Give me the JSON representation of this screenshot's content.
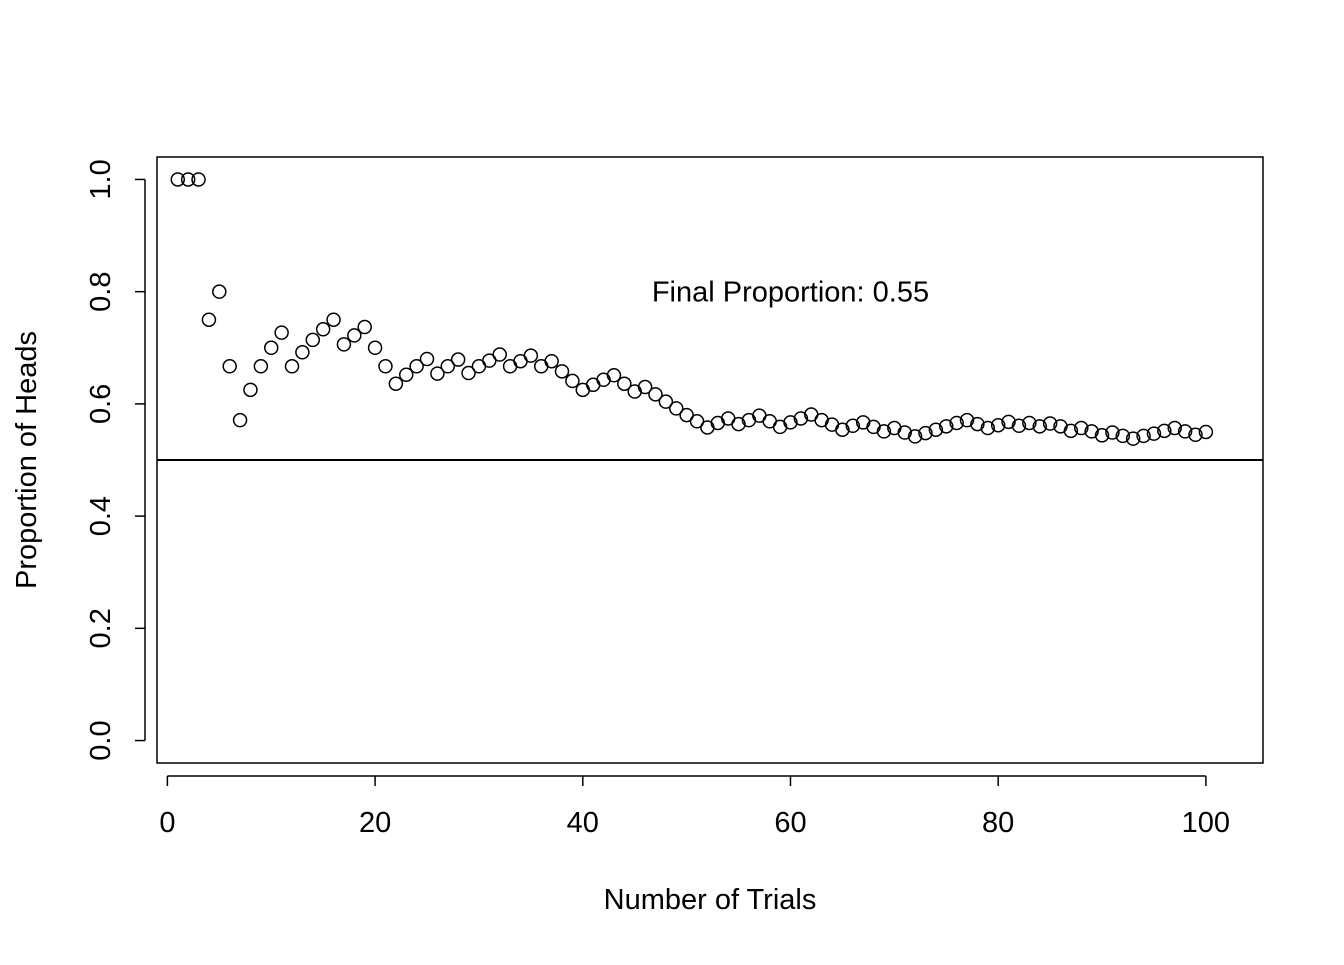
{
  "chart_data": {
    "type": "scatter",
    "title": "",
    "xlabel": "Number of Trials",
    "ylabel": "Proportion of Heads",
    "xlim": [
      -1,
      105.5
    ],
    "ylim": [
      -0.04,
      1.04
    ],
    "xticks": [
      0,
      20,
      40,
      60,
      80,
      100
    ],
    "xtick_labels": [
      "0",
      "20",
      "40",
      "60",
      "80",
      "100"
    ],
    "yticks": [
      0.0,
      0.2,
      0.4,
      0.6,
      0.8,
      1.0
    ],
    "ytick_labels": [
      "0.0",
      "0.2",
      "0.4",
      "0.6",
      "0.8",
      "1.0"
    ],
    "grid": false,
    "legend": "none",
    "reference_line": {
      "orientation": "horizontal",
      "y": 0.5
    },
    "annotation": {
      "text": "Final Proportion:  0.55",
      "x": 60,
      "y": 0.8
    },
    "marker": "open-circle",
    "color": "#000000",
    "series": [
      {
        "x": [
          1,
          2,
          3,
          4,
          5,
          6,
          7,
          8,
          9,
          10,
          11,
          12,
          13,
          14,
          15,
          16,
          17,
          18,
          19,
          20,
          21,
          22,
          23,
          24,
          25,
          26,
          27,
          28,
          29,
          30,
          31,
          32,
          33,
          34,
          35,
          36,
          37,
          38,
          39,
          40,
          41,
          42,
          43,
          44,
          45,
          46,
          47,
          48,
          49,
          50,
          51,
          52,
          53,
          54,
          55,
          56,
          57,
          58,
          59,
          60,
          61,
          62,
          63,
          64,
          65,
          66,
          67,
          68,
          69,
          70,
          71,
          72,
          73,
          74,
          75,
          76,
          77,
          78,
          79,
          80,
          81,
          82,
          83,
          84,
          85,
          86,
          87,
          88,
          89,
          90,
          91,
          92,
          93,
          94,
          95,
          96,
          97,
          98,
          99,
          100
        ],
        "y": [
          1.0,
          1.0,
          1.0,
          0.75,
          0.8,
          0.667,
          0.571,
          0.625,
          0.667,
          0.7,
          0.727,
          0.667,
          0.692,
          0.714,
          0.733,
          0.75,
          0.706,
          0.722,
          0.737,
          0.7,
          0.667,
          0.636,
          0.652,
          0.667,
          0.68,
          0.654,
          0.667,
          0.679,
          0.655,
          0.667,
          0.677,
          0.688,
          0.667,
          0.676,
          0.686,
          0.667,
          0.676,
          0.658,
          0.641,
          0.625,
          0.634,
          0.643,
          0.651,
          0.636,
          0.622,
          0.63,
          0.617,
          0.604,
          0.592,
          0.58,
          0.569,
          0.558,
          0.566,
          0.574,
          0.564,
          0.571,
          0.579,
          0.569,
          0.559,
          0.567,
          0.574,
          0.581,
          0.571,
          0.563,
          0.554,
          0.561,
          0.567,
          0.559,
          0.551,
          0.557,
          0.549,
          0.542,
          0.548,
          0.554,
          0.56,
          0.566,
          0.571,
          0.564,
          0.557,
          0.562,
          0.568,
          0.561,
          0.566,
          0.56,
          0.565,
          0.56,
          0.552,
          0.557,
          0.551,
          0.544,
          0.549,
          0.543,
          0.538,
          0.543,
          0.547,
          0.552,
          0.557,
          0.551,
          0.545,
          0.55
        ]
      }
    ]
  }
}
